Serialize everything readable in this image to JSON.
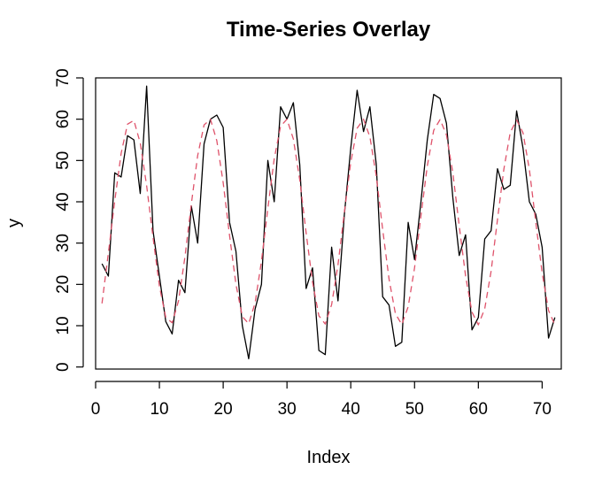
{
  "chart_data": {
    "type": "line",
    "title": "Time-Series Overlay",
    "xlabel": "Index",
    "ylabel": "y",
    "xlim": [
      0,
      73
    ],
    "ylim": [
      -0.5,
      70
    ],
    "x_ticks": [
      0,
      10,
      20,
      30,
      40,
      50,
      60,
      70
    ],
    "y_ticks": [
      0,
      10,
      20,
      30,
      40,
      50,
      60,
      70
    ],
    "grid": false,
    "legend": "none",
    "series": [
      {
        "style": "solid",
        "color": "#000000",
        "x": [
          1,
          2,
          3,
          4,
          5,
          6,
          7,
          8,
          9,
          10,
          11,
          12,
          13,
          14,
          15,
          16,
          17,
          18,
          19,
          20,
          21,
          22,
          23,
          24,
          25,
          26,
          27,
          28,
          29,
          30,
          31,
          32,
          33,
          34,
          35,
          36,
          37,
          38,
          39,
          40,
          41,
          42,
          43,
          44,
          45,
          46,
          47,
          48,
          49,
          50,
          51,
          52,
          53,
          54,
          55,
          56,
          57,
          58,
          59,
          60,
          61,
          62,
          63,
          64,
          65,
          66,
          67,
          68,
          69,
          70,
          71,
          72
        ],
        "values": [
          25,
          22,
          47,
          46,
          56,
          55,
          42,
          68,
          33,
          22,
          11,
          8,
          21,
          18,
          39,
          30,
          54,
          60,
          61,
          58,
          35,
          28,
          10,
          2,
          14,
          20,
          50,
          40,
          63,
          60,
          64,
          49,
          19,
          24,
          4,
          3,
          29,
          16,
          37,
          53,
          67,
          57,
          63,
          49,
          17,
          15,
          5,
          6,
          35,
          26,
          40,
          55,
          66,
          65,
          59,
          41,
          27,
          32,
          9,
          12,
          31,
          33,
          48,
          43,
          44,
          62,
          53,
          40,
          37,
          29,
          7,
          12
        ]
      },
      {
        "style": "dashed",
        "color": "#DF536B",
        "x": [
          1,
          2,
          3,
          4,
          5,
          6,
          7,
          8,
          9,
          10,
          11,
          12,
          13,
          14,
          15,
          16,
          17,
          18,
          19,
          20,
          21,
          22,
          23,
          24,
          25,
          26,
          27,
          28,
          29,
          30,
          31,
          32,
          33,
          34,
          35,
          36,
          37,
          38,
          39,
          40,
          41,
          42,
          43,
          44,
          45,
          46,
          47,
          48,
          49,
          50,
          51,
          52,
          53,
          54,
          55,
          56,
          57,
          58,
          59,
          60,
          61,
          62,
          63,
          64,
          65,
          66,
          67,
          68,
          69,
          70,
          71,
          72
        ],
        "values": [
          15.4,
          27.6,
          40.2,
          51.7,
          58.8,
          59.7,
          54.2,
          43.9,
          31.4,
          19.6,
          12.0,
          10.7,
          16.0,
          26.6,
          39.4,
          51.2,
          58.6,
          60.0,
          54.8,
          44.6,
          31.8,
          20.0,
          12.2,
          10.5,
          15.5,
          25.6,
          38.4,
          50.4,
          58.3,
          60.0,
          55.2,
          45.3,
          32.5,
          20.6,
          12.4,
          10.4,
          15.1,
          24.8,
          37.5,
          49.6,
          57.8,
          60.0,
          55.7,
          46.2,
          33.3,
          21.3,
          12.9,
          10.3,
          14.6,
          24.0,
          36.6,
          48.7,
          57.3,
          59.9,
          56.2,
          47.0,
          34.2,
          22.0,
          13.3,
          10.2,
          14.1,
          23.2,
          35.7,
          47.9,
          56.8,
          59.8,
          56.7,
          47.8,
          35.1,
          22.8,
          13.7,
          10.2
        ]
      }
    ]
  }
}
